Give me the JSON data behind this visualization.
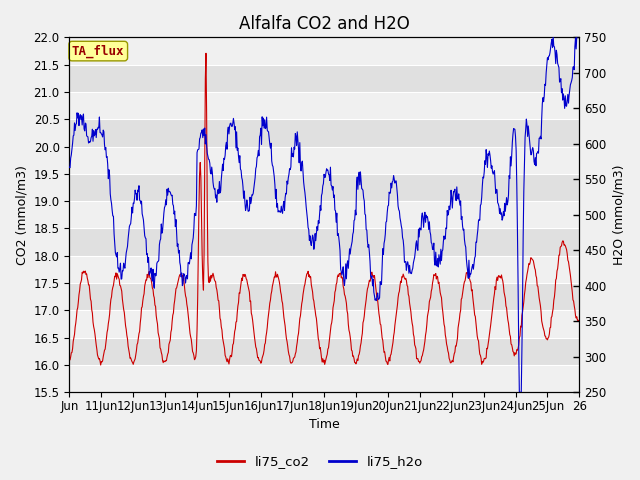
{
  "title": "Alfalfa CO2 and H2O",
  "xlabel": "Time",
  "ylabel_left": "CO2 (mmol/m3)",
  "ylabel_right": "H2O (mmol/m3)",
  "legend_label": "TA_flux",
  "line1_label": "li75_co2",
  "line2_label": "li75_h2o",
  "line1_color": "#cc0000",
  "line2_color": "#0000cc",
  "ylim_left": [
    15.5,
    22.0
  ],
  "ylim_right": [
    250,
    750
  ],
  "yticks_left": [
    15.5,
    16.0,
    16.5,
    17.0,
    17.5,
    18.0,
    18.5,
    19.0,
    19.5,
    20.0,
    20.5,
    21.0,
    21.5,
    22.0
  ],
  "yticks_right": [
    250,
    300,
    350,
    400,
    450,
    500,
    550,
    600,
    650,
    700,
    750
  ],
  "bg_color": "#f0f0f0",
  "plot_bg_light": "#f0f0f0",
  "plot_bg_dark": "#e0e0e0",
  "legend_box_color": "#ffff99",
  "legend_box_edge": "#999900",
  "legend_text_color": "#990000",
  "title_fontsize": 12,
  "axis_fontsize": 9,
  "tick_fontsize": 8.5
}
